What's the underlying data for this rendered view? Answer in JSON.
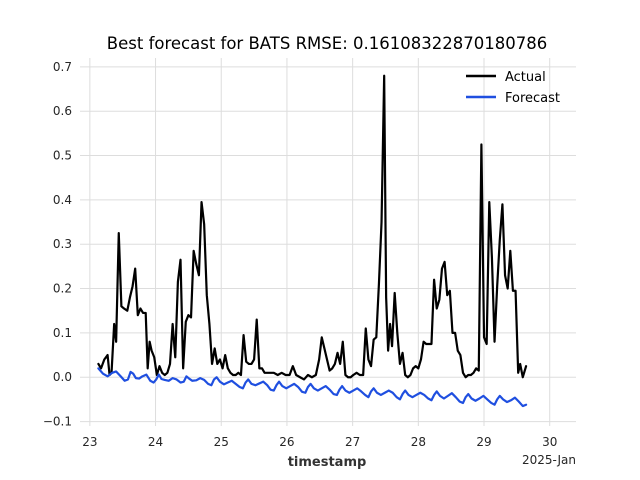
{
  "chart_data": {
    "type": "line",
    "title": "Best forecast for BATS RMSE: 0.16108322870180786",
    "xlabel": "timestamp",
    "ylabel": "",
    "x_offset_label": "2025-Jan",
    "xlim": [
      22.85,
      30.4
    ],
    "ylim": [
      -0.11,
      0.72
    ],
    "x_ticks": [
      23,
      24,
      25,
      26,
      27,
      28,
      29,
      30
    ],
    "x_tick_labels": [
      "23",
      "24",
      "25",
      "26",
      "27",
      "28",
      "29",
      "30"
    ],
    "y_ticks": [
      -0.1,
      0.0,
      0.1,
      0.2,
      0.3,
      0.4,
      0.5,
      0.6,
      0.7
    ],
    "y_tick_labels": [
      "−0.1",
      "0.0",
      "0.1",
      "0.2",
      "0.3",
      "0.4",
      "0.5",
      "0.6",
      "0.7"
    ],
    "grid": true,
    "legend_position": "top-right",
    "series": [
      {
        "name": "Actual",
        "color": "#000000",
        "points": [
          [
            23.13,
            0.03
          ],
          [
            23.17,
            0.02
          ],
          [
            23.22,
            0.04
          ],
          [
            23.27,
            0.05
          ],
          [
            23.3,
            0.005
          ],
          [
            23.33,
            0.01
          ],
          [
            23.37,
            0.12
          ],
          [
            23.4,
            0.08
          ],
          [
            23.44,
            0.325
          ],
          [
            23.48,
            0.16
          ],
          [
            23.52,
            0.155
          ],
          [
            23.57,
            0.15
          ],
          [
            23.61,
            0.18
          ],
          [
            23.65,
            0.205
          ],
          [
            23.69,
            0.245
          ],
          [
            23.73,
            0.14
          ],
          [
            23.77,
            0.155
          ],
          [
            23.81,
            0.145
          ],
          [
            23.85,
            0.145
          ],
          [
            23.88,
            0.02
          ],
          [
            23.91,
            0.08
          ],
          [
            23.94,
            0.06
          ],
          [
            23.98,
            0.045
          ],
          [
            24.02,
            0.005
          ],
          [
            24.06,
            0.025
          ],
          [
            24.1,
            0.01
          ],
          [
            24.14,
            0.005
          ],
          [
            24.18,
            0.01
          ],
          [
            24.22,
            0.03
          ],
          [
            24.26,
            0.12
          ],
          [
            24.3,
            0.045
          ],
          [
            24.34,
            0.215
          ],
          [
            24.38,
            0.265
          ],
          [
            24.42,
            0.02
          ],
          [
            24.46,
            0.125
          ],
          [
            24.5,
            0.14
          ],
          [
            24.54,
            0.135
          ],
          [
            24.58,
            0.285
          ],
          [
            24.62,
            0.255
          ],
          [
            24.66,
            0.23
          ],
          [
            24.7,
            0.395
          ],
          [
            24.74,
            0.345
          ],
          [
            24.78,
            0.185
          ],
          [
            24.82,
            0.12
          ],
          [
            24.86,
            0.03
          ],
          [
            24.9,
            0.065
          ],
          [
            24.94,
            0.03
          ],
          [
            24.98,
            0.04
          ],
          [
            25.02,
            0.02
          ],
          [
            25.06,
            0.05
          ],
          [
            25.1,
            0.02
          ],
          [
            25.14,
            0.01
          ],
          [
            25.18,
            0.005
          ],
          [
            25.22,
            0.005
          ],
          [
            25.26,
            0.01
          ],
          [
            25.3,
            0.005
          ],
          [
            25.34,
            0.095
          ],
          [
            25.38,
            0.035
          ],
          [
            25.42,
            0.03
          ],
          [
            25.46,
            0.03
          ],
          [
            25.5,
            0.04
          ],
          [
            25.54,
            0.13
          ],
          [
            25.58,
            0.02
          ],
          [
            25.62,
            0.02
          ],
          [
            25.66,
            0.01
          ],
          [
            25.7,
            0.01
          ],
          [
            25.74,
            0.01
          ],
          [
            25.8,
            0.01
          ],
          [
            25.86,
            0.005
          ],
          [
            25.92,
            0.01
          ],
          [
            25.98,
            0.005
          ],
          [
            26.04,
            0.005
          ],
          [
            26.09,
            0.025
          ],
          [
            26.14,
            0.005
          ],
          [
            26.2,
            0.0
          ],
          [
            26.26,
            -0.005
          ],
          [
            26.32,
            0.005
          ],
          [
            26.38,
            0.0
          ],
          [
            26.44,
            0.005
          ],
          [
            26.49,
            0.04
          ],
          [
            26.53,
            0.09
          ],
          [
            26.57,
            0.065
          ],
          [
            26.61,
            0.04
          ],
          [
            26.65,
            0.015
          ],
          [
            26.69,
            0.02
          ],
          [
            26.73,
            0.03
          ],
          [
            26.77,
            0.055
          ],
          [
            26.81,
            0.03
          ],
          [
            26.85,
            0.08
          ],
          [
            26.89,
            0.005
          ],
          [
            26.93,
            0.0
          ],
          [
            26.97,
            0.0
          ],
          [
            27.01,
            0.005
          ],
          [
            27.06,
            0.01
          ],
          [
            27.11,
            0.005
          ],
          [
            27.16,
            0.005
          ],
          [
            27.2,
            0.11
          ],
          [
            27.24,
            0.04
          ],
          [
            27.28,
            0.025
          ],
          [
            27.32,
            0.085
          ],
          [
            27.36,
            0.09
          ],
          [
            27.4,
            0.21
          ],
          [
            27.44,
            0.35
          ],
          [
            27.48,
            0.68
          ],
          [
            27.51,
            0.18
          ],
          [
            27.54,
            0.06
          ],
          [
            27.57,
            0.12
          ],
          [
            27.6,
            0.07
          ],
          [
            27.64,
            0.19
          ],
          [
            27.68,
            0.1
          ],
          [
            27.72,
            0.03
          ],
          [
            27.76,
            0.055
          ],
          [
            27.8,
            0.005
          ],
          [
            27.84,
            0.0
          ],
          [
            27.88,
            0.005
          ],
          [
            27.92,
            0.02
          ],
          [
            27.96,
            0.025
          ],
          [
            28.0,
            0.02
          ],
          [
            28.04,
            0.04
          ],
          [
            28.08,
            0.08
          ],
          [
            28.12,
            0.075
          ],
          [
            28.16,
            0.075
          ],
          [
            28.2,
            0.075
          ],
          [
            28.24,
            0.22
          ],
          [
            28.28,
            0.155
          ],
          [
            28.32,
            0.175
          ],
          [
            28.36,
            0.245
          ],
          [
            28.4,
            0.26
          ],
          [
            28.44,
            0.185
          ],
          [
            28.48,
            0.195
          ],
          [
            28.52,
            0.1
          ],
          [
            28.56,
            0.1
          ],
          [
            28.6,
            0.06
          ],
          [
            28.64,
            0.05
          ],
          [
            28.68,
            0.01
          ],
          [
            28.72,
            0.0
          ],
          [
            28.76,
            0.005
          ],
          [
            28.8,
            0.005
          ],
          [
            28.84,
            0.01
          ],
          [
            28.88,
            0.02
          ],
          [
            28.92,
            0.015
          ],
          [
            28.96,
            0.525
          ],
          [
            29.0,
            0.09
          ],
          [
            29.04,
            0.075
          ],
          [
            29.08,
            0.395
          ],
          [
            29.12,
            0.27
          ],
          [
            29.16,
            0.08
          ],
          [
            29.2,
            0.205
          ],
          [
            29.24,
            0.31
          ],
          [
            29.28,
            0.39
          ],
          [
            29.32,
            0.23
          ],
          [
            29.36,
            0.2
          ],
          [
            29.4,
            0.285
          ],
          [
            29.44,
            0.195
          ],
          [
            29.48,
            0.195
          ],
          [
            29.52,
            0.01
          ],
          [
            29.55,
            0.03
          ],
          [
            29.59,
            0.0
          ],
          [
            29.64,
            0.025
          ]
        ]
      },
      {
        "name": "Forecast",
        "color": "#1f4fe0",
        "points": [
          [
            23.13,
            0.02
          ],
          [
            23.2,
            0.008
          ],
          [
            23.27,
            0.002
          ],
          [
            23.34,
            0.01
          ],
          [
            23.4,
            0.013
          ],
          [
            23.47,
            0.002
          ],
          [
            23.53,
            -0.008
          ],
          [
            23.58,
            -0.005
          ],
          [
            23.62,
            0.012
          ],
          [
            23.66,
            0.008
          ],
          [
            23.7,
            -0.002
          ],
          [
            23.75,
            -0.003
          ],
          [
            23.8,
            0.002
          ],
          [
            23.86,
            0.006
          ],
          [
            23.92,
            -0.008
          ],
          [
            23.97,
            -0.012
          ],
          [
            24.01,
            -0.005
          ],
          [
            24.05,
            0.006
          ],
          [
            24.09,
            -0.004
          ],
          [
            24.14,
            -0.006
          ],
          [
            24.2,
            -0.008
          ],
          [
            24.26,
            -0.002
          ],
          [
            24.32,
            -0.005
          ],
          [
            24.38,
            -0.012
          ],
          [
            24.43,
            -0.01
          ],
          [
            24.47,
            0.002
          ],
          [
            24.51,
            -0.003
          ],
          [
            24.56,
            -0.008
          ],
          [
            24.62,
            -0.007
          ],
          [
            24.68,
            -0.002
          ],
          [
            24.74,
            -0.006
          ],
          [
            24.8,
            -0.015
          ],
          [
            24.85,
            -0.018
          ],
          [
            24.89,
            -0.005
          ],
          [
            24.93,
            0.0
          ],
          [
            24.98,
            -0.01
          ],
          [
            25.04,
            -0.016
          ],
          [
            25.1,
            -0.012
          ],
          [
            25.16,
            -0.008
          ],
          [
            25.22,
            -0.015
          ],
          [
            25.28,
            -0.022
          ],
          [
            25.33,
            -0.025
          ],
          [
            25.37,
            -0.012
          ],
          [
            25.41,
            -0.005
          ],
          [
            25.46,
            -0.015
          ],
          [
            25.52,
            -0.018
          ],
          [
            25.58,
            -0.014
          ],
          [
            25.64,
            -0.01
          ],
          [
            25.7,
            -0.018
          ],
          [
            25.75,
            -0.028
          ],
          [
            25.8,
            -0.03
          ],
          [
            25.84,
            -0.018
          ],
          [
            25.88,
            -0.01
          ],
          [
            25.93,
            -0.02
          ],
          [
            25.99,
            -0.025
          ],
          [
            26.05,
            -0.02
          ],
          [
            26.11,
            -0.015
          ],
          [
            26.17,
            -0.022
          ],
          [
            26.23,
            -0.033
          ],
          [
            26.28,
            -0.035
          ],
          [
            26.32,
            -0.022
          ],
          [
            26.36,
            -0.015
          ],
          [
            26.41,
            -0.025
          ],
          [
            26.47,
            -0.03
          ],
          [
            26.53,
            -0.025
          ],
          [
            26.59,
            -0.02
          ],
          [
            26.65,
            -0.028
          ],
          [
            26.71,
            -0.038
          ],
          [
            26.76,
            -0.04
          ],
          [
            26.8,
            -0.028
          ],
          [
            26.84,
            -0.02
          ],
          [
            26.89,
            -0.03
          ],
          [
            26.95,
            -0.035
          ],
          [
            27.01,
            -0.03
          ],
          [
            27.07,
            -0.025
          ],
          [
            27.13,
            -0.032
          ],
          [
            27.19,
            -0.04
          ],
          [
            27.24,
            -0.045
          ],
          [
            27.28,
            -0.032
          ],
          [
            27.32,
            -0.025
          ],
          [
            27.37,
            -0.035
          ],
          [
            27.43,
            -0.04
          ],
          [
            27.49,
            -0.035
          ],
          [
            27.55,
            -0.03
          ],
          [
            27.61,
            -0.035
          ],
          [
            27.67,
            -0.045
          ],
          [
            27.72,
            -0.05
          ],
          [
            27.76,
            -0.038
          ],
          [
            27.8,
            -0.03
          ],
          [
            27.85,
            -0.04
          ],
          [
            27.91,
            -0.045
          ],
          [
            27.97,
            -0.04
          ],
          [
            28.03,
            -0.035
          ],
          [
            28.09,
            -0.04
          ],
          [
            28.15,
            -0.048
          ],
          [
            28.2,
            -0.052
          ],
          [
            28.24,
            -0.04
          ],
          [
            28.28,
            -0.032
          ],
          [
            28.33,
            -0.042
          ],
          [
            28.39,
            -0.048
          ],
          [
            28.45,
            -0.042
          ],
          [
            28.51,
            -0.036
          ],
          [
            28.57,
            -0.045
          ],
          [
            28.63,
            -0.055
          ],
          [
            28.68,
            -0.058
          ],
          [
            28.72,
            -0.045
          ],
          [
            28.76,
            -0.038
          ],
          [
            28.81,
            -0.048
          ],
          [
            28.87,
            -0.053
          ],
          [
            28.93,
            -0.048
          ],
          [
            28.99,
            -0.042
          ],
          [
            29.05,
            -0.05
          ],
          [
            29.11,
            -0.058
          ],
          [
            29.16,
            -0.062
          ],
          [
            29.2,
            -0.05
          ],
          [
            29.24,
            -0.042
          ],
          [
            29.29,
            -0.05
          ],
          [
            29.35,
            -0.056
          ],
          [
            29.41,
            -0.052
          ],
          [
            29.47,
            -0.046
          ],
          [
            29.53,
            -0.055
          ],
          [
            29.59,
            -0.065
          ],
          [
            29.64,
            -0.062
          ]
        ]
      }
    ]
  }
}
